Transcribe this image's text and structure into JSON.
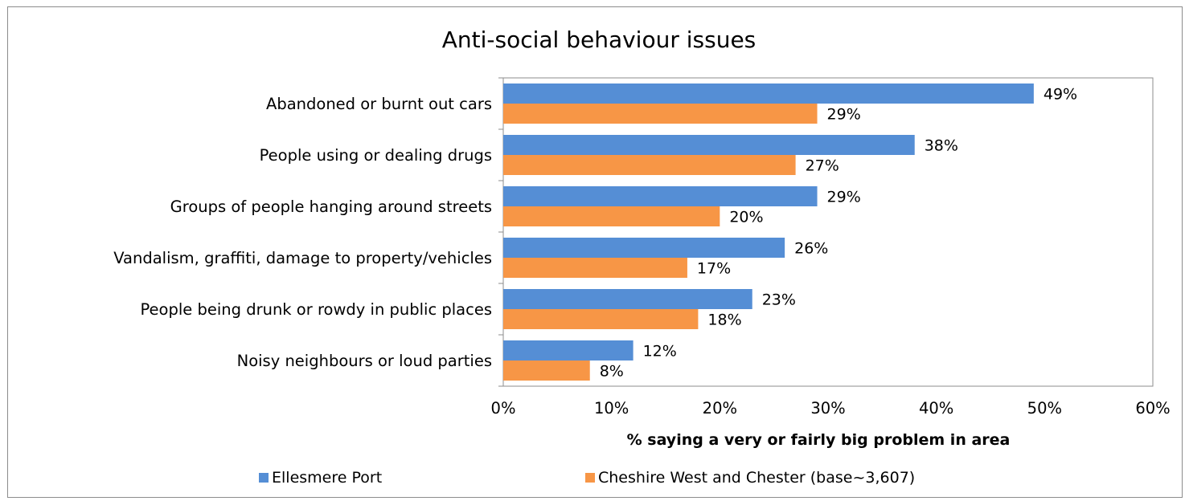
{
  "chart_data": {
    "type": "bar",
    "orientation": "horizontal",
    "title": "Anti-social behaviour issues",
    "xlabel": "% saying a very or fairly big problem in area",
    "ylabel": "",
    "categories": [
      "Abandoned or burnt out cars",
      "People using or dealing drugs",
      "Groups of people hanging around streets",
      "Vandalism, graffiti, damage to property/vehicles",
      "People being drunk or rowdy in public places",
      "Noisy neighbours or loud parties"
    ],
    "series": [
      {
        "name": "Ellesmere Port",
        "color": "#558ed5",
        "values": [
          49,
          38,
          29,
          26,
          23,
          12
        ],
        "labels": [
          "49%",
          "38%",
          "29%",
          "26%",
          "23%",
          "12%"
        ]
      },
      {
        "name": "Cheshire West and Chester (base~3,607)",
        "color": "#f79646",
        "values": [
          29,
          27,
          20,
          17,
          18,
          8
        ],
        "labels": [
          "29%",
          "27%",
          "20%",
          "17%",
          "18%",
          "8%"
        ]
      }
    ],
    "xlim": [
      0,
      60
    ],
    "xticks": [
      0,
      10,
      20,
      30,
      40,
      50,
      60
    ],
    "xtick_labels": [
      "0%",
      "10%",
      "20%",
      "30%",
      "40%",
      "50%",
      "60%"
    ],
    "grid": false,
    "legend_position": "bottom"
  }
}
